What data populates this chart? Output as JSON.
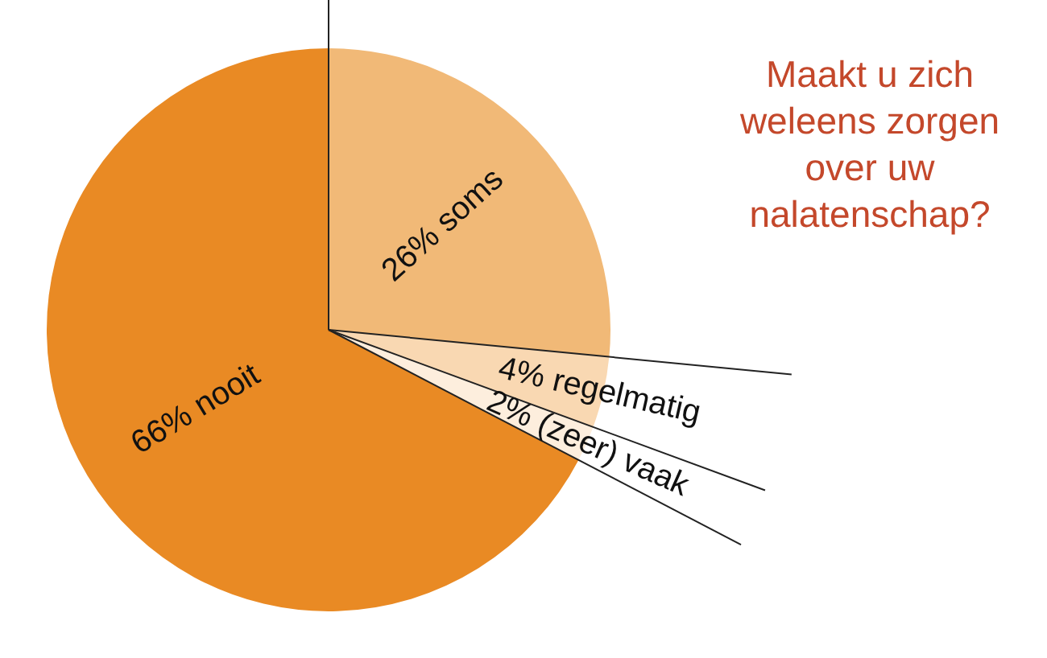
{
  "chart_data": {
    "type": "pie",
    "title": "Maakt u zich weleens zorgen over uw nalatenschap?",
    "categories": [
      "soms",
      "regelmatig",
      "(zeer) vaak",
      "nooit"
    ],
    "values": [
      26,
      4,
      2,
      66
    ],
    "value_labels": [
      "26%",
      "4%",
      "2%",
      "66%"
    ],
    "colors": [
      "#f1b977",
      "#f9d8b2",
      "#fdeedd",
      "#e98a24"
    ],
    "legend": false
  }
}
